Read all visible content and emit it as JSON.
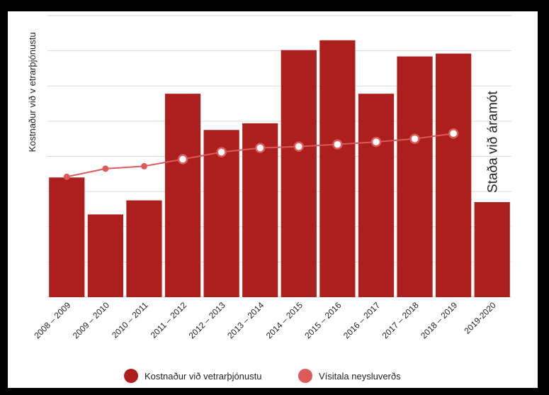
{
  "chart_data": {
    "type": "bar",
    "categories": [
      "2008 – 2009",
      "2009 – 2010",
      "2010 – 2011",
      "2011 – 2012",
      "2012 – 2013",
      "2013 – 2014",
      "2014 – 2015",
      "2015 – 2016",
      "2016 – 2017",
      "2017 – 2018",
      "2018 – 2019",
      "2019-2020"
    ],
    "ylabel": "Kostnaður við v etrarþjónustu",
    "grid": true,
    "ylim": [
      0,
      8
    ],
    "legend_position": "bottom",
    "series": [
      {
        "name": "Kostnaður við vetrarþjónustu",
        "type": "bar",
        "color": "#ac1f1d",
        "values": [
          3.4,
          2.35,
          2.75,
          5.78,
          4.75,
          4.94,
          7.02,
          7.3,
          5.78,
          6.84,
          6.92,
          2.7
        ]
      },
      {
        "name": "Vísitala neysluverðs",
        "type": "line",
        "color": "#dc5a5a",
        "values": [
          3.42,
          3.65,
          3.72,
          3.92,
          4.12,
          4.24,
          4.28,
          4.34,
          4.41,
          4.5,
          4.65,
          null
        ]
      }
    ],
    "annotations": [
      {
        "text": "Staða við áramót",
        "category": "2019-2020"
      }
    ]
  }
}
